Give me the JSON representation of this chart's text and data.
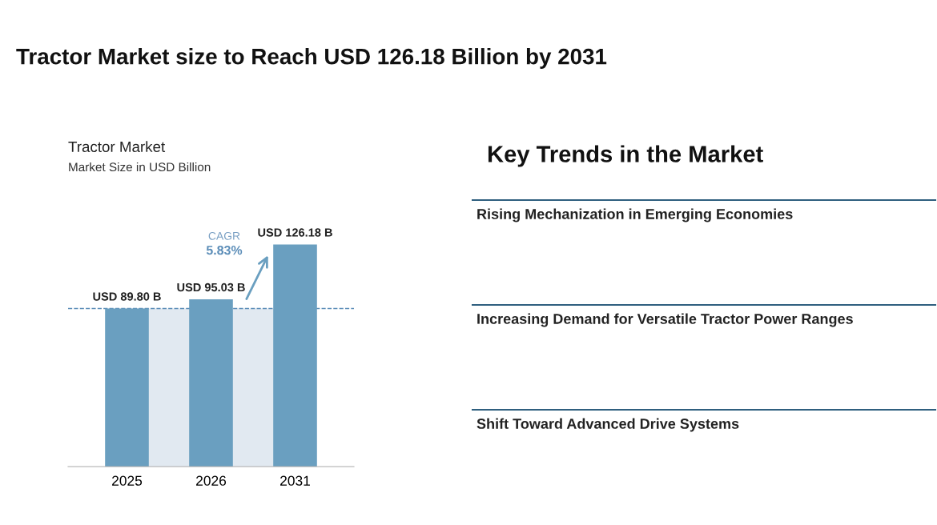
{
  "chart_data": [
    {
      "type": "bar",
      "title": "Tractor Market",
      "subtitle": "Market Size in USD Billion",
      "annotations": [
        "Tractor Market size to Reach USD 126.18 Billion by 2031",
        "CAGR",
        "5.83%"
      ],
      "categories": [
        "2025",
        "2026",
        "2031"
      ],
      "values": [
        89.8,
        95.03,
        126.18
      ],
      "value_labels": [
        "USD 89.80 B",
        "USD 95.03 B",
        "USD 126.18 B"
      ],
      "color": "#6a9fc0",
      "ref_lines": [
        {
          "axis": "y",
          "value": 89.8,
          "color": "#5b8db8",
          "line_style": "dashed"
        }
      ],
      "bands": [
        {
          "axis": "y",
          "from": 0,
          "to": 89.8,
          "color": "#e1e9f1"
        }
      ],
      "grid": false,
      "legend": false,
      "tick_labels": "x"
    },
    {
      "type": "other",
      "title": "Key Trends in the Market",
      "annotations": [
        "Rising Mechanization in Emerging Economies",
        "Increasing Demand for Versatile Tractor Power Ranges",
        "Shift Toward Advanced Drive Systems"
      ]
    }
  ]
}
